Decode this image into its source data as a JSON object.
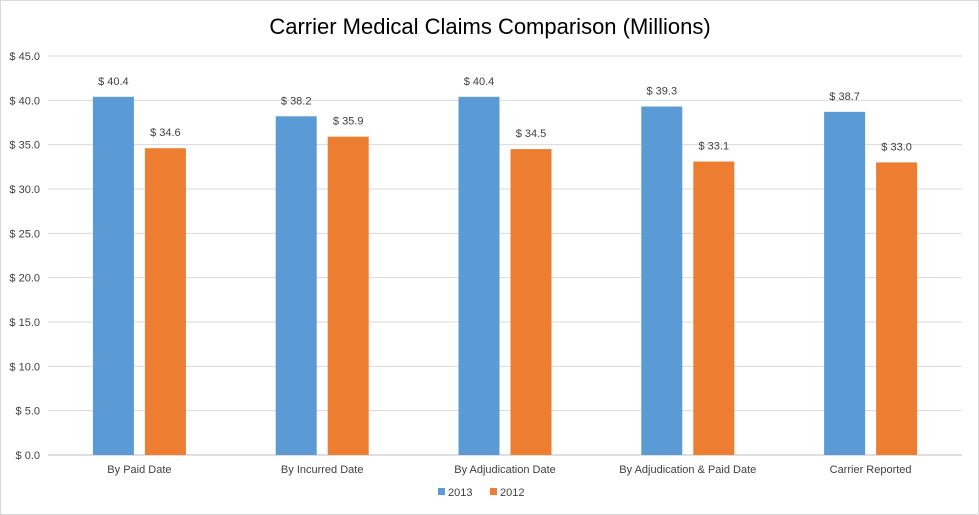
{
  "chart_data": {
    "type": "bar",
    "title": "Carrier Medical Claims Comparison (Millions)",
    "xlabel": "",
    "ylabel": "",
    "categories": [
      "By Paid Date",
      "By Incurred Date",
      "By Adjudication Date",
      "By Adjudication & Paid Date",
      "Carrier Reported"
    ],
    "series": [
      {
        "name": "2013",
        "color": "#5b9bd5",
        "values": [
          40.4,
          38.2,
          40.4,
          39.3,
          38.7
        ]
      },
      {
        "name": "2012",
        "color": "#ed7d31",
        "values": [
          34.6,
          35.9,
          34.5,
          33.1,
          33.0
        ]
      }
    ],
    "value_prefix": "$ ",
    "value_decimals": 1,
    "ylim": [
      0,
      45
    ],
    "ytick_step": 5,
    "ytick_labels": [
      "$ 0.0",
      "$ 5.0",
      "$ 10.0",
      "$ 15.0",
      "$ 20.0",
      "$ 25.0",
      "$ 30.0",
      "$ 35.0",
      "$ 40.0",
      "$ 45.0"
    ],
    "grid": true,
    "legend_position": "bottom-center"
  }
}
